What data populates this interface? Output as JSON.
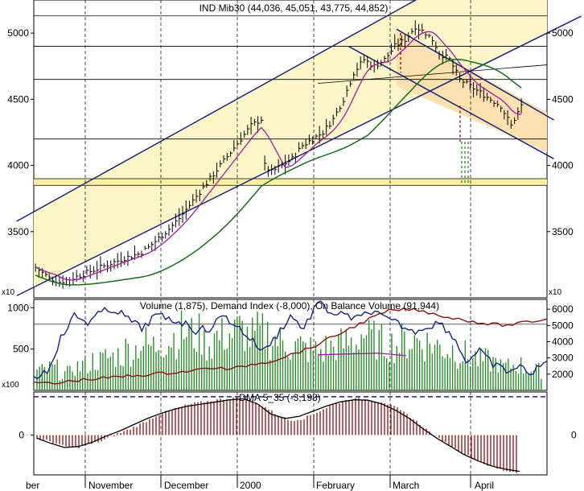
{
  "chart_data": [
    {
      "type": "candlestick-ohlc",
      "title": "IND Mib30 (44,036, 45,051, 43,775, 44,852)",
      "ylim": [
        3000,
        5250
      ],
      "ticks": [
        3500,
        4000,
        4500,
        5000
      ],
      "tick_labels": [
        "3500",
        "4000",
        "4500",
        "5000"
      ],
      "scale_note": "x10",
      "x_months": [
        "ber",
        "November",
        "December",
        "2000",
        "February",
        "March",
        "April"
      ],
      "close_series": [
        [
          0,
          3230
        ],
        [
          4,
          3150
        ],
        [
          7,
          3120
        ],
        [
          10,
          3140
        ],
        [
          14,
          3180
        ],
        [
          18,
          3220
        ],
        [
          22,
          3260
        ],
        [
          26,
          3300
        ],
        [
          30,
          3330
        ],
        [
          33,
          3380
        ],
        [
          36,
          3450
        ],
        [
          39,
          3520
        ],
        [
          42,
          3600
        ],
        [
          45,
          3700
        ],
        [
          48,
          3800
        ],
        [
          51,
          3900
        ],
        [
          54,
          4000
        ],
        [
          57,
          4100
        ],
        [
          60,
          4200
        ],
        [
          63,
          4300
        ],
        [
          66,
          4350
        ],
        [
          67,
          4000
        ],
        [
          69,
          3950
        ],
        [
          72,
          4000
        ],
        [
          75,
          4050
        ],
        [
          78,
          4150
        ],
        [
          81,
          4200
        ],
        [
          84,
          4250
        ],
        [
          87,
          4350
        ],
        [
          90,
          4500
        ],
        [
          93,
          4700
        ],
        [
          96,
          4800
        ],
        [
          99,
          4750
        ],
        [
          102,
          4800
        ],
        [
          105,
          4900
        ],
        [
          108,
          4950
        ],
        [
          111,
          5050
        ],
        [
          114,
          5000
        ],
        [
          116,
          4950
        ],
        [
          118,
          4850
        ],
        [
          121,
          4800
        ],
        [
          124,
          4650
        ],
        [
          127,
          4600
        ],
        [
          130,
          4550
        ],
        [
          133,
          4500
        ],
        [
          136,
          4450
        ],
        [
          139,
          4300
        ],
        [
          142,
          4450
        ]
      ],
      "bands": [
        {
          "name": "upper-channel",
          "from": [
            0,
            3650
          ],
          "to": [
            150,
            5800
          ]
        },
        {
          "name": "lower-channel",
          "from": [
            0,
            3080
          ],
          "to": [
            150,
            5000
          ]
        },
        {
          "name": "down-channel-upper",
          "from": [
            106,
            5030
          ],
          "to": [
            150,
            4400
          ]
        },
        {
          "name": "down-channel-lower",
          "from": [
            106,
            4600
          ],
          "to": [
            150,
            4100
          ]
        }
      ],
      "horizontal_levels": [
        5130,
        4900,
        4650,
        4200,
        3900,
        3850
      ]
    },
    {
      "type": "line+bar",
      "title": "Volume (1,875), Demand Index (-8,000), On Balance Volume (91,944)",
      "left_ticks": [
        "500",
        "1000"
      ],
      "right_ticks": [
        "2000",
        "3000",
        "4000",
        "5000",
        "6000"
      ],
      "scale_note": "x100",
      "volume": [
        250,
        280,
        220,
        300,
        330,
        380,
        420,
        450,
        520,
        600,
        560,
        620,
        680,
        740,
        700,
        600,
        680,
        720,
        760,
        680,
        720,
        650,
        600,
        560,
        520,
        500,
        540,
        580,
        610,
        720,
        650,
        600,
        580,
        620,
        640,
        600,
        560,
        520,
        460,
        420,
        380,
        360,
        300,
        320,
        280,
        250
      ],
      "obv": [
        1800,
        2200,
        4200,
        5600,
        5200,
        5800,
        6000,
        5400,
        4800,
        5600,
        5400,
        5200,
        4700,
        4800,
        5600,
        5000,
        4200,
        3400,
        4400,
        5600,
        4800,
        6400,
        5800,
        5600,
        5400,
        5900,
        5400,
        5100,
        4600,
        4900,
        5200,
        4400,
        2800,
        3400,
        2600,
        2200,
        2400,
        2100,
        2800
      ],
      "demand_index": [
        1500,
        1400,
        1600,
        1700,
        1800,
        1900,
        2000,
        2100,
        2200,
        2400,
        2300,
        2600,
        2800,
        3200,
        3600,
        4200,
        4800,
        5400,
        5900,
        6000,
        5800,
        5500,
        5300,
        5100,
        5000,
        5200,
        5400
      ]
    },
    {
      "type": "bar+line",
      "title": "DMA 5_35 (-3,198)",
      "ticks": [
        "0"
      ],
      "values": [
        -20,
        -30,
        -55,
        -60,
        -45,
        -25,
        5,
        30,
        60,
        95,
        120,
        140,
        155,
        165,
        175,
        180,
        170,
        140,
        100,
        70,
        80,
        110,
        140,
        165,
        175,
        170,
        160,
        130,
        90,
        40,
        -10,
        -50,
        -90,
        -120,
        -150,
        -170,
        -180
      ],
      "line": [
        -15,
        -40,
        -60,
        -55,
        -35,
        -5,
        20,
        50,
        80,
        105,
        125,
        140,
        150,
        160,
        170,
        175,
        150,
        100,
        80,
        90,
        115,
        140,
        160,
        170,
        168,
        150,
        120,
        80,
        30,
        -15,
        -55,
        -95,
        -125,
        -150,
        -165,
        -175
      ],
      "dashed_level": 185
    }
  ]
}
